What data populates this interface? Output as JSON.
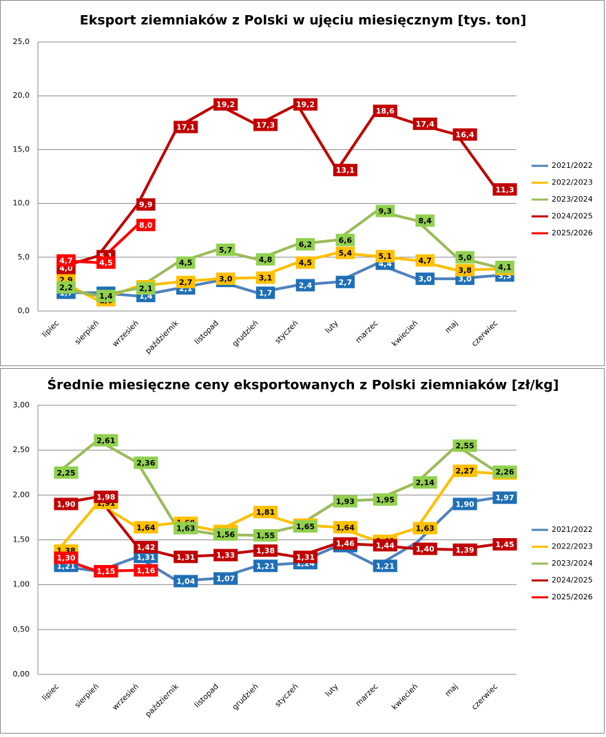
{
  "chart_data": [
    {
      "type": "line",
      "title": "Eksport ziemniaków z Polski w ujęciu miesięcznym [tys. ton]",
      "categories": [
        "lipiec",
        "sierpień",
        "wrzesień",
        "październik",
        "listopad",
        "grudzień",
        "styczeń",
        "luty",
        "marzec",
        "kwiecień",
        "maj",
        "czerwiec"
      ],
      "ylim": [
        0,
        25
      ],
      "yticks": [
        {
          "value": 0,
          "label": "0,0"
        },
        {
          "value": 5,
          "label": "5,0"
        },
        {
          "value": 10,
          "label": "10,0"
        },
        {
          "value": 15,
          "label": "15,0"
        },
        {
          "value": 20,
          "label": "20,0"
        },
        {
          "value": 25,
          "label": "25,0"
        }
      ],
      "grid": true,
      "legend": "right",
      "series": [
        {
          "name": "2021/2022",
          "color": "#4f81bd",
          "label_color": "#1f6fb5",
          "values": [
            1.7,
            1.7,
            1.4,
            2.1,
            2.8,
            1.7,
            2.4,
            2.7,
            4.4,
            3.0,
            3.0,
            3.3
          ],
          "value_labels": [
            "1,7",
            "1,7",
            "1,4",
            "2,1",
            "2,8",
            "1,7",
            "2,4",
            "2,7",
            "4,4",
            "3,0",
            "3,0",
            "3,3"
          ]
        },
        {
          "name": "2022/2023",
          "color": "#ffc000",
          "label_color": "#ffc000",
          "values": [
            2.9,
            1.0,
            2.3,
            2.7,
            3.0,
            3.1,
            4.5,
            5.4,
            5.1,
            4.7,
            3.8,
            3.9
          ],
          "value_labels": [
            "2,9",
            "1,0",
            "2,3",
            "2,7",
            "3,0",
            "3,1",
            "4,5",
            "5,4",
            "5,1",
            "4,7",
            "3,8",
            "3,9"
          ]
        },
        {
          "name": "2023/2024",
          "color": "#9bbb59",
          "label_color": "#92d050",
          "values": [
            2.2,
            1.4,
            2.1,
            4.5,
            5.7,
            4.8,
            6.2,
            6.6,
            9.3,
            8.4,
            5.0,
            4.1
          ],
          "value_labels": [
            "2,2",
            "1,4",
            "2,1",
            "4,5",
            "5,7",
            "4,8",
            "6,2",
            "6,6",
            "9,3",
            "8,4",
            "5,0",
            "4,1"
          ]
        },
        {
          "name": "2024/2025",
          "color": "#c00000",
          "label_color": "#c00000",
          "values": [
            4.0,
            5.1,
            9.9,
            17.1,
            19.2,
            17.3,
            19.2,
            13.1,
            18.6,
            17.4,
            16.4,
            11.3
          ],
          "value_labels": [
            "4,0",
            "5,1",
            "9,9",
            "17,1",
            "19,2",
            "17,3",
            "19,2",
            "13,1",
            "18,6",
            "17,4",
            "16,4",
            "11,3"
          ]
        },
        {
          "name": "2025/2026",
          "color": "#ff0000",
          "label_color": "#ff0000",
          "values": [
            4.7,
            4.5,
            8.0,
            null,
            null,
            null,
            null,
            null,
            null,
            null,
            null,
            null
          ],
          "value_labels": [
            "4,7",
            "4,5",
            "8,0",
            null,
            null,
            null,
            null,
            null,
            null,
            null,
            null,
            null
          ]
        }
      ]
    },
    {
      "type": "line",
      "title": "Średnie miesięczne ceny eksportowanych z Polski ziemniaków [zł/kg]",
      "categories": [
        "lipiec",
        "sierpień",
        "wrzesień",
        "październik",
        "listopad",
        "grudzień",
        "styczeń",
        "luty",
        "marzec",
        "kwiecień",
        "maj",
        "czerwiec"
      ],
      "ylim": [
        0,
        3
      ],
      "yticks": [
        {
          "value": 0,
          "label": "0,00"
        },
        {
          "value": 0.5,
          "label": "0,50"
        },
        {
          "value": 1,
          "label": "1,00"
        },
        {
          "value": 1.5,
          "label": "1,50"
        },
        {
          "value": 2,
          "label": "2,00"
        },
        {
          "value": 2.5,
          "label": "2,50"
        },
        {
          "value": 3,
          "label": "3,00"
        }
      ],
      "grid": true,
      "legend": "right",
      "series": [
        {
          "name": "2021/2022",
          "color": "#4f81bd",
          "label_color": "#1f6fb5",
          "values": [
            1.21,
            1.15,
            1.31,
            1.04,
            1.07,
            1.21,
            1.24,
            1.43,
            1.21,
            1.47,
            1.9,
            1.97
          ],
          "value_labels": [
            "1,21",
            "1,15",
            "1,31",
            "1,04",
            "1,07",
            "1,21",
            "1,24",
            "1,43",
            "1,21",
            null,
            "1,90",
            "1,97"
          ]
        },
        {
          "name": "2022/2023",
          "color": "#ffc000",
          "label_color": "#ffc000",
          "values": [
            1.38,
            1.91,
            1.64,
            1.69,
            1.6,
            1.81,
            1.67,
            1.64,
            1.49,
            1.63,
            2.27,
            2.24
          ],
          "value_labels": [
            "1,38",
            "1,91",
            "1,64",
            "1,69",
            "1,60",
            "1,81",
            "1,67",
            "1,64",
            "1,49",
            "1,63",
            "2,27",
            "2,24"
          ]
        },
        {
          "name": "2023/2024",
          "color": "#9bbb59",
          "label_color": "#92d050",
          "values": [
            2.25,
            2.61,
            2.36,
            1.63,
            1.56,
            1.55,
            1.65,
            1.93,
            1.95,
            2.14,
            2.55,
            2.26
          ],
          "value_labels": [
            "2,25",
            "2,61",
            "2,36",
            "1,63",
            "1,56",
            "1,55",
            "1,65",
            "1,93",
            "1,95",
            "2,14",
            "2,55",
            "2,26"
          ]
        },
        {
          "name": "2024/2025",
          "color": "#c00000",
          "label_color": "#c00000",
          "values": [
            1.9,
            1.98,
            1.42,
            1.31,
            1.33,
            1.38,
            1.31,
            1.46,
            1.44,
            1.4,
            1.39,
            1.45
          ],
          "value_labels": [
            "1,90",
            "1,98",
            "1,42",
            "1,31",
            "1,33",
            "1,38",
            "1,31",
            "1,46",
            "1,44",
            "1,40",
            "1,39",
            "1,45"
          ]
        },
        {
          "name": "2025/2026",
          "color": "#ff0000",
          "label_color": "#ff0000",
          "values": [
            1.3,
            1.15,
            1.16,
            null,
            null,
            null,
            null,
            null,
            null,
            null,
            null,
            null
          ],
          "value_labels": [
            "1,30",
            "1,15",
            "1,16",
            null,
            null,
            null,
            null,
            null,
            null,
            null,
            null,
            null
          ]
        }
      ]
    }
  ]
}
